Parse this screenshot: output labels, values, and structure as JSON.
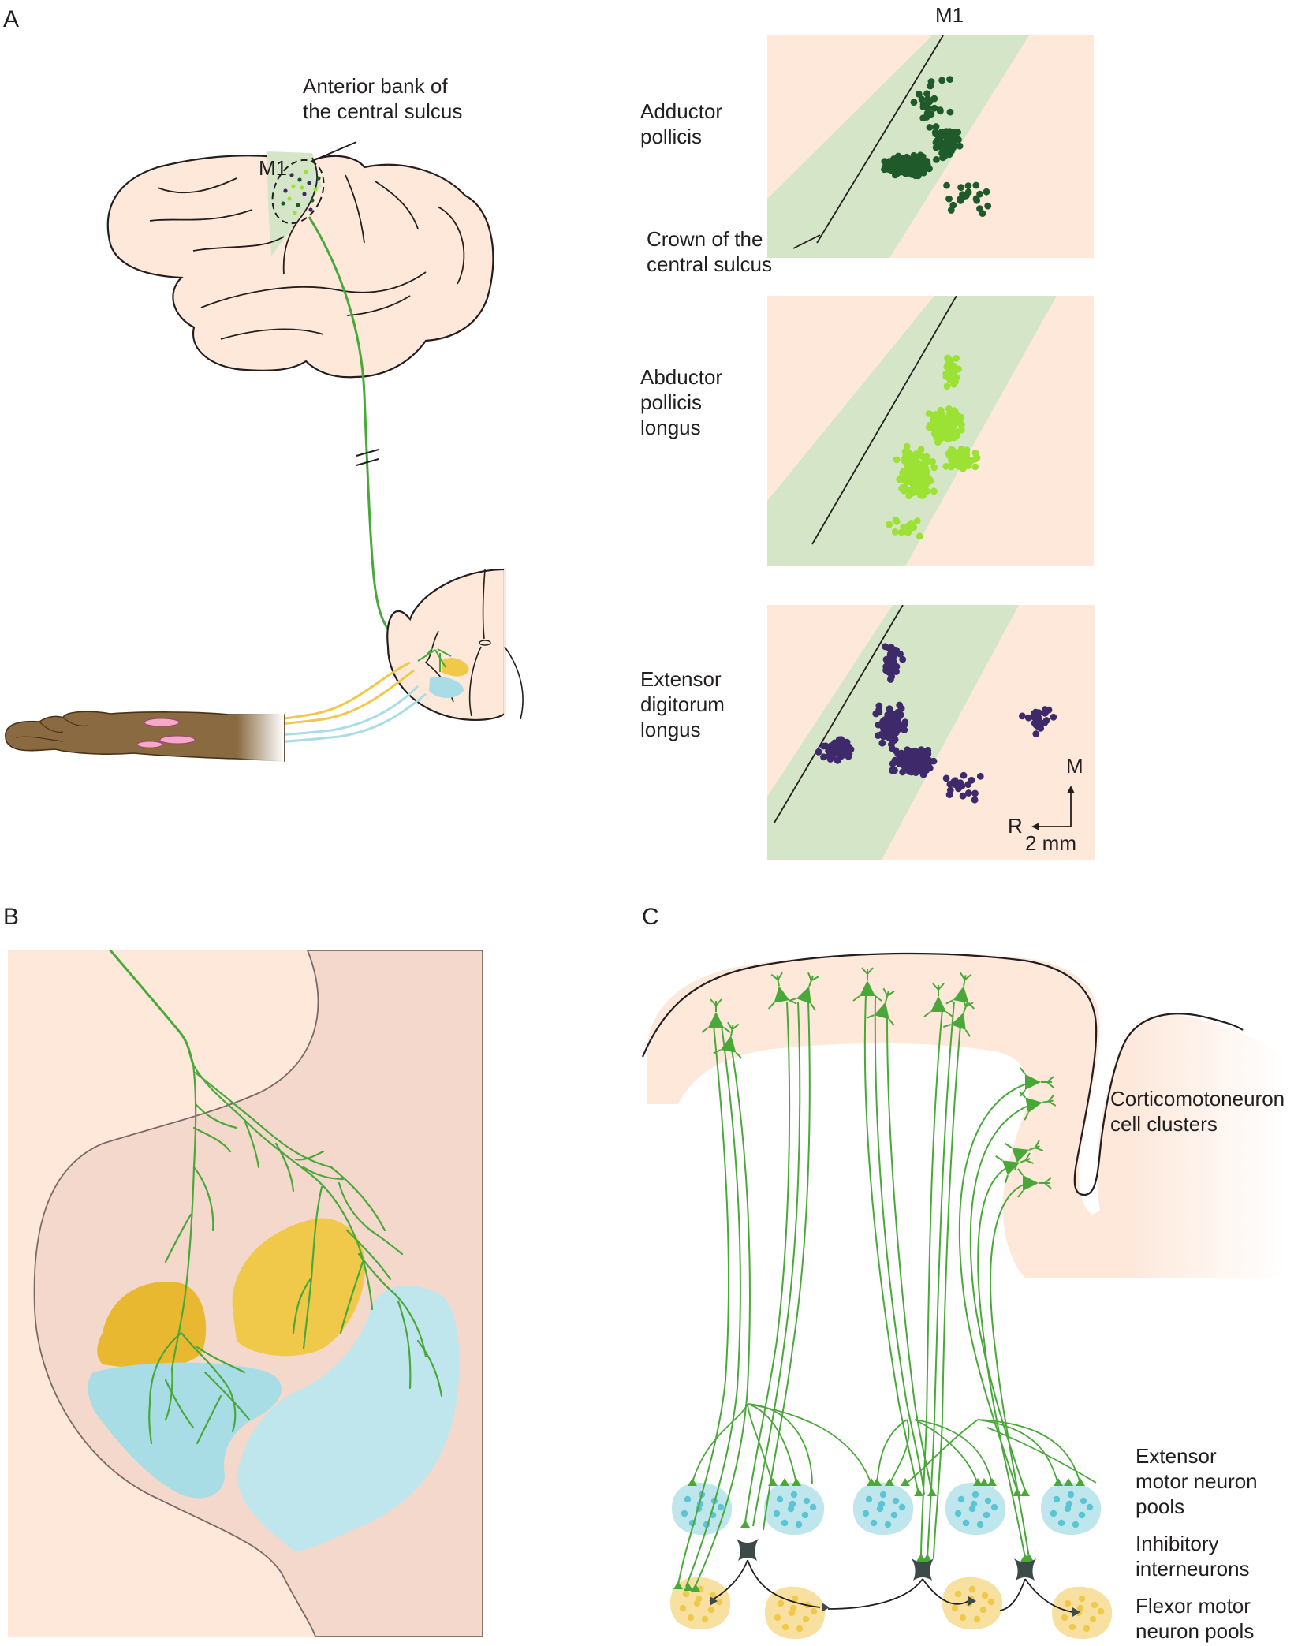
{
  "panels": {
    "A": {
      "letter": "A",
      "m1_label": "M1",
      "brain_m1_label": "M1",
      "anterior_bank": [
        "Anterior bank of",
        "the central sulcus"
      ],
      "crown": [
        "Crown of the",
        "central sulcus"
      ],
      "maps": [
        {
          "label": [
            "Adductor",
            "pollicis"
          ],
          "color": "#1e5a2a"
        },
        {
          "label": [
            "Abductor",
            "pollicis",
            "longus"
          ],
          "color": "#9be234"
        },
        {
          "label": [
            "Extensor",
            "digitorum",
            "longus"
          ],
          "color": "#3e2a6a"
        }
      ],
      "scale": {
        "m": "M",
        "r": "R",
        "length": "2 mm"
      }
    },
    "B": {
      "letter": "B"
    },
    "C": {
      "letter": "C",
      "corticomotoneuron": [
        "Corticomotoneuron",
        "cell clusters"
      ],
      "extensor": [
        "Extensor",
        "motor neuron",
        "pools"
      ],
      "inhibitory": [
        "Inhibitory",
        "interneurons"
      ],
      "flexor": [
        "Flexor motor",
        "neuron pools"
      ]
    }
  },
  "colors": {
    "skin": "#fde8da",
    "cortex_band": "#d5e6c8",
    "green_axon": "#4aa83a",
    "extensor_pool": "#bfe6ec",
    "flexor_pool": "#f7e0a0",
    "motor_nucleus_yellow": "#f1c94a",
    "motor_nucleus_blue": "#a9dde6",
    "interneuron": "#3c4a4a"
  }
}
